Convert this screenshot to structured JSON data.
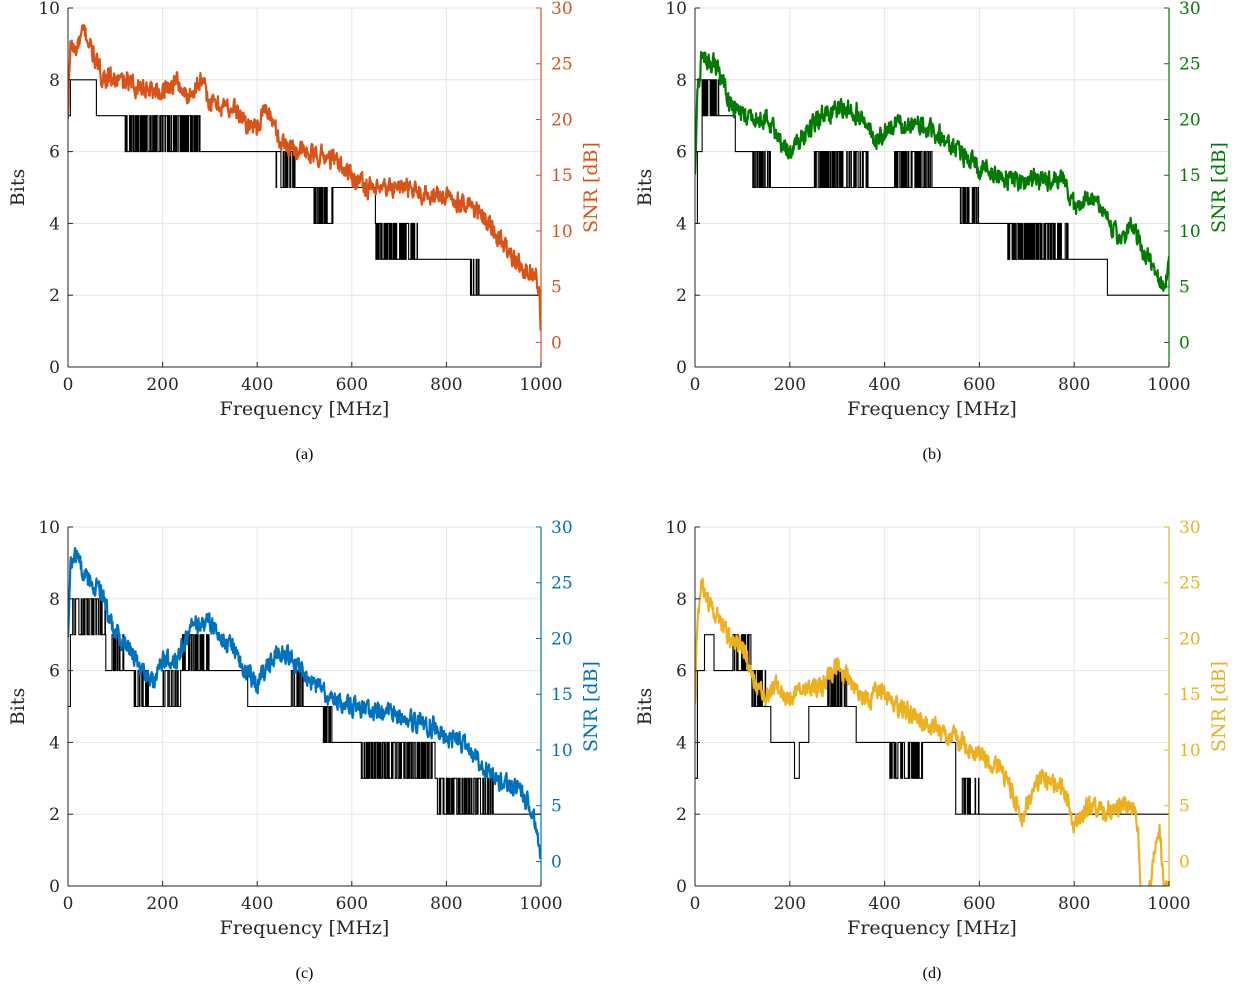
{
  "chart_data": [
    {
      "type": "line",
      "caption": "(a)",
      "xlabel": "Frequency [MHz]",
      "ylabel": "Bits",
      "y2label": "SNR [dB]",
      "xlim": [
        0,
        1000
      ],
      "ylim": [
        0,
        10
      ],
      "y2lim": [
        -2.2,
        30
      ],
      "xticks": [
        "0",
        "200",
        "400",
        "600",
        "800",
        "1000"
      ],
      "yticks": [
        "0",
        "2",
        "4",
        "6",
        "8",
        "10"
      ],
      "y2ticks": [
        "0",
        "5",
        "10",
        "15",
        "20",
        "25",
        "30"
      ],
      "grid": true,
      "colors": {
        "bits": "#000000",
        "snr": "#D95319"
      },
      "series": [
        {
          "axis": "left",
          "x": [
            0,
            5,
            60,
            120,
            160,
            280,
            380,
            390,
            440,
            480,
            520,
            560,
            650,
            740,
            850,
            870,
            900,
            1000
          ],
          "values": [
            7,
            8,
            7,
            6.6,
            6.6,
            6,
            6,
            5.5,
            5.5,
            5,
            4.6,
            4.6,
            3.6,
            3,
            2.4,
            2,
            2,
            2
          ],
          "ripple": [
            0,
            0,
            0,
            1,
            1,
            0,
            0,
            0,
            1,
            0,
            1,
            0,
            1,
            1,
            1,
            0,
            0,
            0
          ]
        },
        {
          "axis": "right",
          "x": [
            0,
            5,
            15,
            35,
            60,
            70,
            100,
            150,
            200,
            230,
            250,
            280,
            300,
            350,
            380,
            400,
            420,
            450,
            500,
            560,
            600,
            650,
            700,
            730,
            800,
            850,
            900,
            950,
            990,
            997,
            1000
          ],
          "values": [
            20,
            27,
            26,
            28,
            25,
            24,
            23.5,
            23,
            22.5,
            23.5,
            22,
            23.5,
            21.5,
            21,
            19.5,
            19.5,
            21,
            18,
            17,
            16.5,
            15,
            13.5,
            14,
            13.5,
            13,
            12.5,
            10,
            7,
            6,
            4,
            0.5
          ]
        }
      ]
    },
    {
      "type": "line",
      "caption": "(b)",
      "xlabel": "Frequency [MHz]",
      "ylabel": "Bits",
      "y2label": "SNR [dB]",
      "xlim": [
        0,
        1000
      ],
      "ylim": [
        0,
        10
      ],
      "y2lim": [
        -2.2,
        30
      ],
      "xticks": [
        "0",
        "200",
        "400",
        "600",
        "800",
        "1000"
      ],
      "yticks": [
        "0",
        "2",
        "4",
        "6",
        "8",
        "10"
      ],
      "y2ticks": [
        "0",
        "5",
        "10",
        "15",
        "20",
        "25",
        "30"
      ],
      "grid": true,
      "colors": {
        "bits": "#000000",
        "snr": "#007A00"
      },
      "series": [
        {
          "axis": "left",
          "x": [
            0,
            5,
            15,
            30,
            50,
            85,
            120,
            160,
            250,
            340,
            370,
            420,
            500,
            560,
            600,
            660,
            750,
            790,
            870,
            880,
            1000
          ],
          "values": [
            4,
            6,
            7.6,
            7.2,
            7.2,
            6,
            5.6,
            5,
            5.4,
            5.6,
            5.2,
            5.6,
            5,
            4.5,
            4,
            3.6,
            3.6,
            3,
            2,
            2,
            2
          ],
          "ripple": [
            0,
            0,
            1,
            1,
            0,
            0,
            1,
            0,
            1,
            1,
            0,
            1,
            0,
            1,
            0,
            1,
            1,
            0,
            0,
            0,
            0
          ]
        },
        {
          "axis": "right",
          "x": [
            0,
            5,
            15,
            25,
            40,
            60,
            80,
            120,
            150,
            200,
            220,
            260,
            300,
            330,
            360,
            380,
            420,
            460,
            500,
            520,
            560,
            600,
            640,
            680,
            700,
            780,
            800,
            820,
            850,
            900,
            920,
            950,
            990,
            1000
          ],
          "values": [
            15,
            22,
            26,
            25,
            25,
            23,
            21,
            20,
            20,
            17,
            18,
            20,
            21,
            21,
            20,
            18,
            19.5,
            19.5,
            19,
            18.5,
            17,
            15.5,
            15,
            14.5,
            14.5,
            14.5,
            12,
            13,
            12.5,
            9,
            10.5,
            8,
            5,
            7
          ]
        }
      ]
    },
    {
      "type": "line",
      "caption": "(c)",
      "xlabel": "Frequency [MHz]",
      "ylabel": "Bits",
      "y2label": "SNR [dB]",
      "xlim": [
        0,
        1000
      ],
      "ylim": [
        0,
        10
      ],
      "y2lim": [
        -2.2,
        30
      ],
      "xticks": [
        "0",
        "200",
        "400",
        "600",
        "800",
        "1000"
      ],
      "yticks": [
        "0",
        "2",
        "4",
        "6",
        "8",
        "10"
      ],
      "y2ticks": [
        "0",
        "5",
        "10",
        "15",
        "20",
        "25",
        "30"
      ],
      "grid": true,
      "colors": {
        "bits": "#000000",
        "snr": "#0072BD"
      },
      "series": [
        {
          "axis": "left",
          "x": [
            0,
            5,
            10,
            40,
            50,
            80,
            120,
            140,
            170,
            200,
            240,
            300,
            330,
            380,
            390,
            430,
            470,
            500,
            540,
            560,
            620,
            680,
            760,
            780,
            850,
            900,
            1000
          ],
          "values": [
            5,
            7,
            7.6,
            7.2,
            7.6,
            6.4,
            6,
            5.6,
            5,
            5.4,
            6.5,
            6,
            5.5,
            5,
            4.5,
            4.8,
            5.5,
            5,
            4.5,
            4,
            3.6,
            3.4,
            3.5,
            2.5,
            2.4,
            2,
            2
          ],
          "ripple": [
            0,
            0,
            1,
            1,
            1,
            1,
            0,
            1,
            0,
            1,
            1,
            0,
            0,
            0,
            0,
            0,
            1,
            1,
            1,
            0,
            1,
            1,
            1,
            1,
            1,
            0,
            0
          ]
        },
        {
          "axis": "right",
          "x": [
            0,
            5,
            15,
            30,
            50,
            70,
            100,
            130,
            150,
            180,
            200,
            230,
            260,
            300,
            320,
            350,
            380,
            400,
            420,
            450,
            480,
            500,
            550,
            600,
            650,
            700,
            750,
            780,
            800,
            820,
            850,
            900,
            950,
            980,
            990,
            998,
            1000
          ],
          "values": [
            20,
            26,
            28,
            26,
            25,
            24,
            20.5,
            19,
            17.5,
            16,
            18,
            18,
            21,
            21.5,
            20,
            19,
            17,
            16,
            17.5,
            19,
            18,
            17,
            14.5,
            14,
            13.5,
            13,
            12.5,
            12,
            11,
            11,
            10,
            7.5,
            6.5,
            5,
            3,
            0,
            0
          ]
        }
      ]
    },
    {
      "type": "line",
      "caption": "(d)",
      "xlabel": "Frequency [MHz]",
      "ylabel": "Bits",
      "y2label": "SNR [dB]",
      "xlim": [
        0,
        1000
      ],
      "ylim": [
        0,
        10
      ],
      "y2lim": [
        -2.2,
        30
      ],
      "xticks": [
        "0",
        "200",
        "400",
        "600",
        "800",
        "1000"
      ],
      "yticks": [
        "0",
        "2",
        "4",
        "6",
        "8",
        "10"
      ],
      "y2ticks": [
        "0",
        "5",
        "10",
        "15",
        "20",
        "25",
        "30"
      ],
      "grid": true,
      "colors": {
        "bits": "#000000",
        "snr": "#EDB120"
      },
      "series": [
        {
          "axis": "left",
          "x": [
            0,
            5,
            20,
            40,
            80,
            120,
            150,
            160,
            200,
            210,
            220,
            240,
            280,
            320,
            340,
            400,
            410,
            470,
            480,
            550,
            560,
            600,
            1000
          ],
          "values": [
            3,
            6,
            7,
            6,
            6.4,
            5.4,
            5.4,
            4,
            4,
            3,
            3.6,
            5,
            5.4,
            5,
            4,
            4,
            3.6,
            3.6,
            4,
            2,
            2.4,
            2,
            2
          ],
          "ripple": [
            0,
            0,
            0,
            1,
            1,
            1,
            0,
            0,
            0,
            0,
            0,
            1,
            1,
            1,
            0,
            0,
            1,
            1,
            1,
            0,
            1,
            0,
            0
          ]
        },
        {
          "axis": "right",
          "x": [
            0,
            5,
            15,
            30,
            50,
            70,
            100,
            130,
            150,
            170,
            200,
            230,
            260,
            300,
            330,
            360,
            380,
            400,
            420,
            450,
            480,
            500,
            550,
            600,
            650,
            680,
            690,
            700,
            730,
            750,
            780,
            800,
            810,
            830,
            860,
            900,
            920,
            935,
            940,
            950,
            960,
            970,
            980,
            990,
            1000
          ],
          "values": [
            14,
            22,
            25,
            23,
            22,
            20,
            19,
            16,
            15,
            16,
            14.5,
            16,
            15.5,
            17.5,
            16,
            14.5,
            15,
            15,
            14,
            13.5,
            12.5,
            12,
            11,
            9.5,
            8,
            5,
            3.5,
            5,
            7.5,
            7,
            6.5,
            3,
            3.5,
            5,
            4.5,
            5,
            5,
            3,
            -2.5,
            -2.5,
            -2.5,
            1,
            3,
            -2.5,
            -2.5
          ]
        }
      ]
    }
  ]
}
